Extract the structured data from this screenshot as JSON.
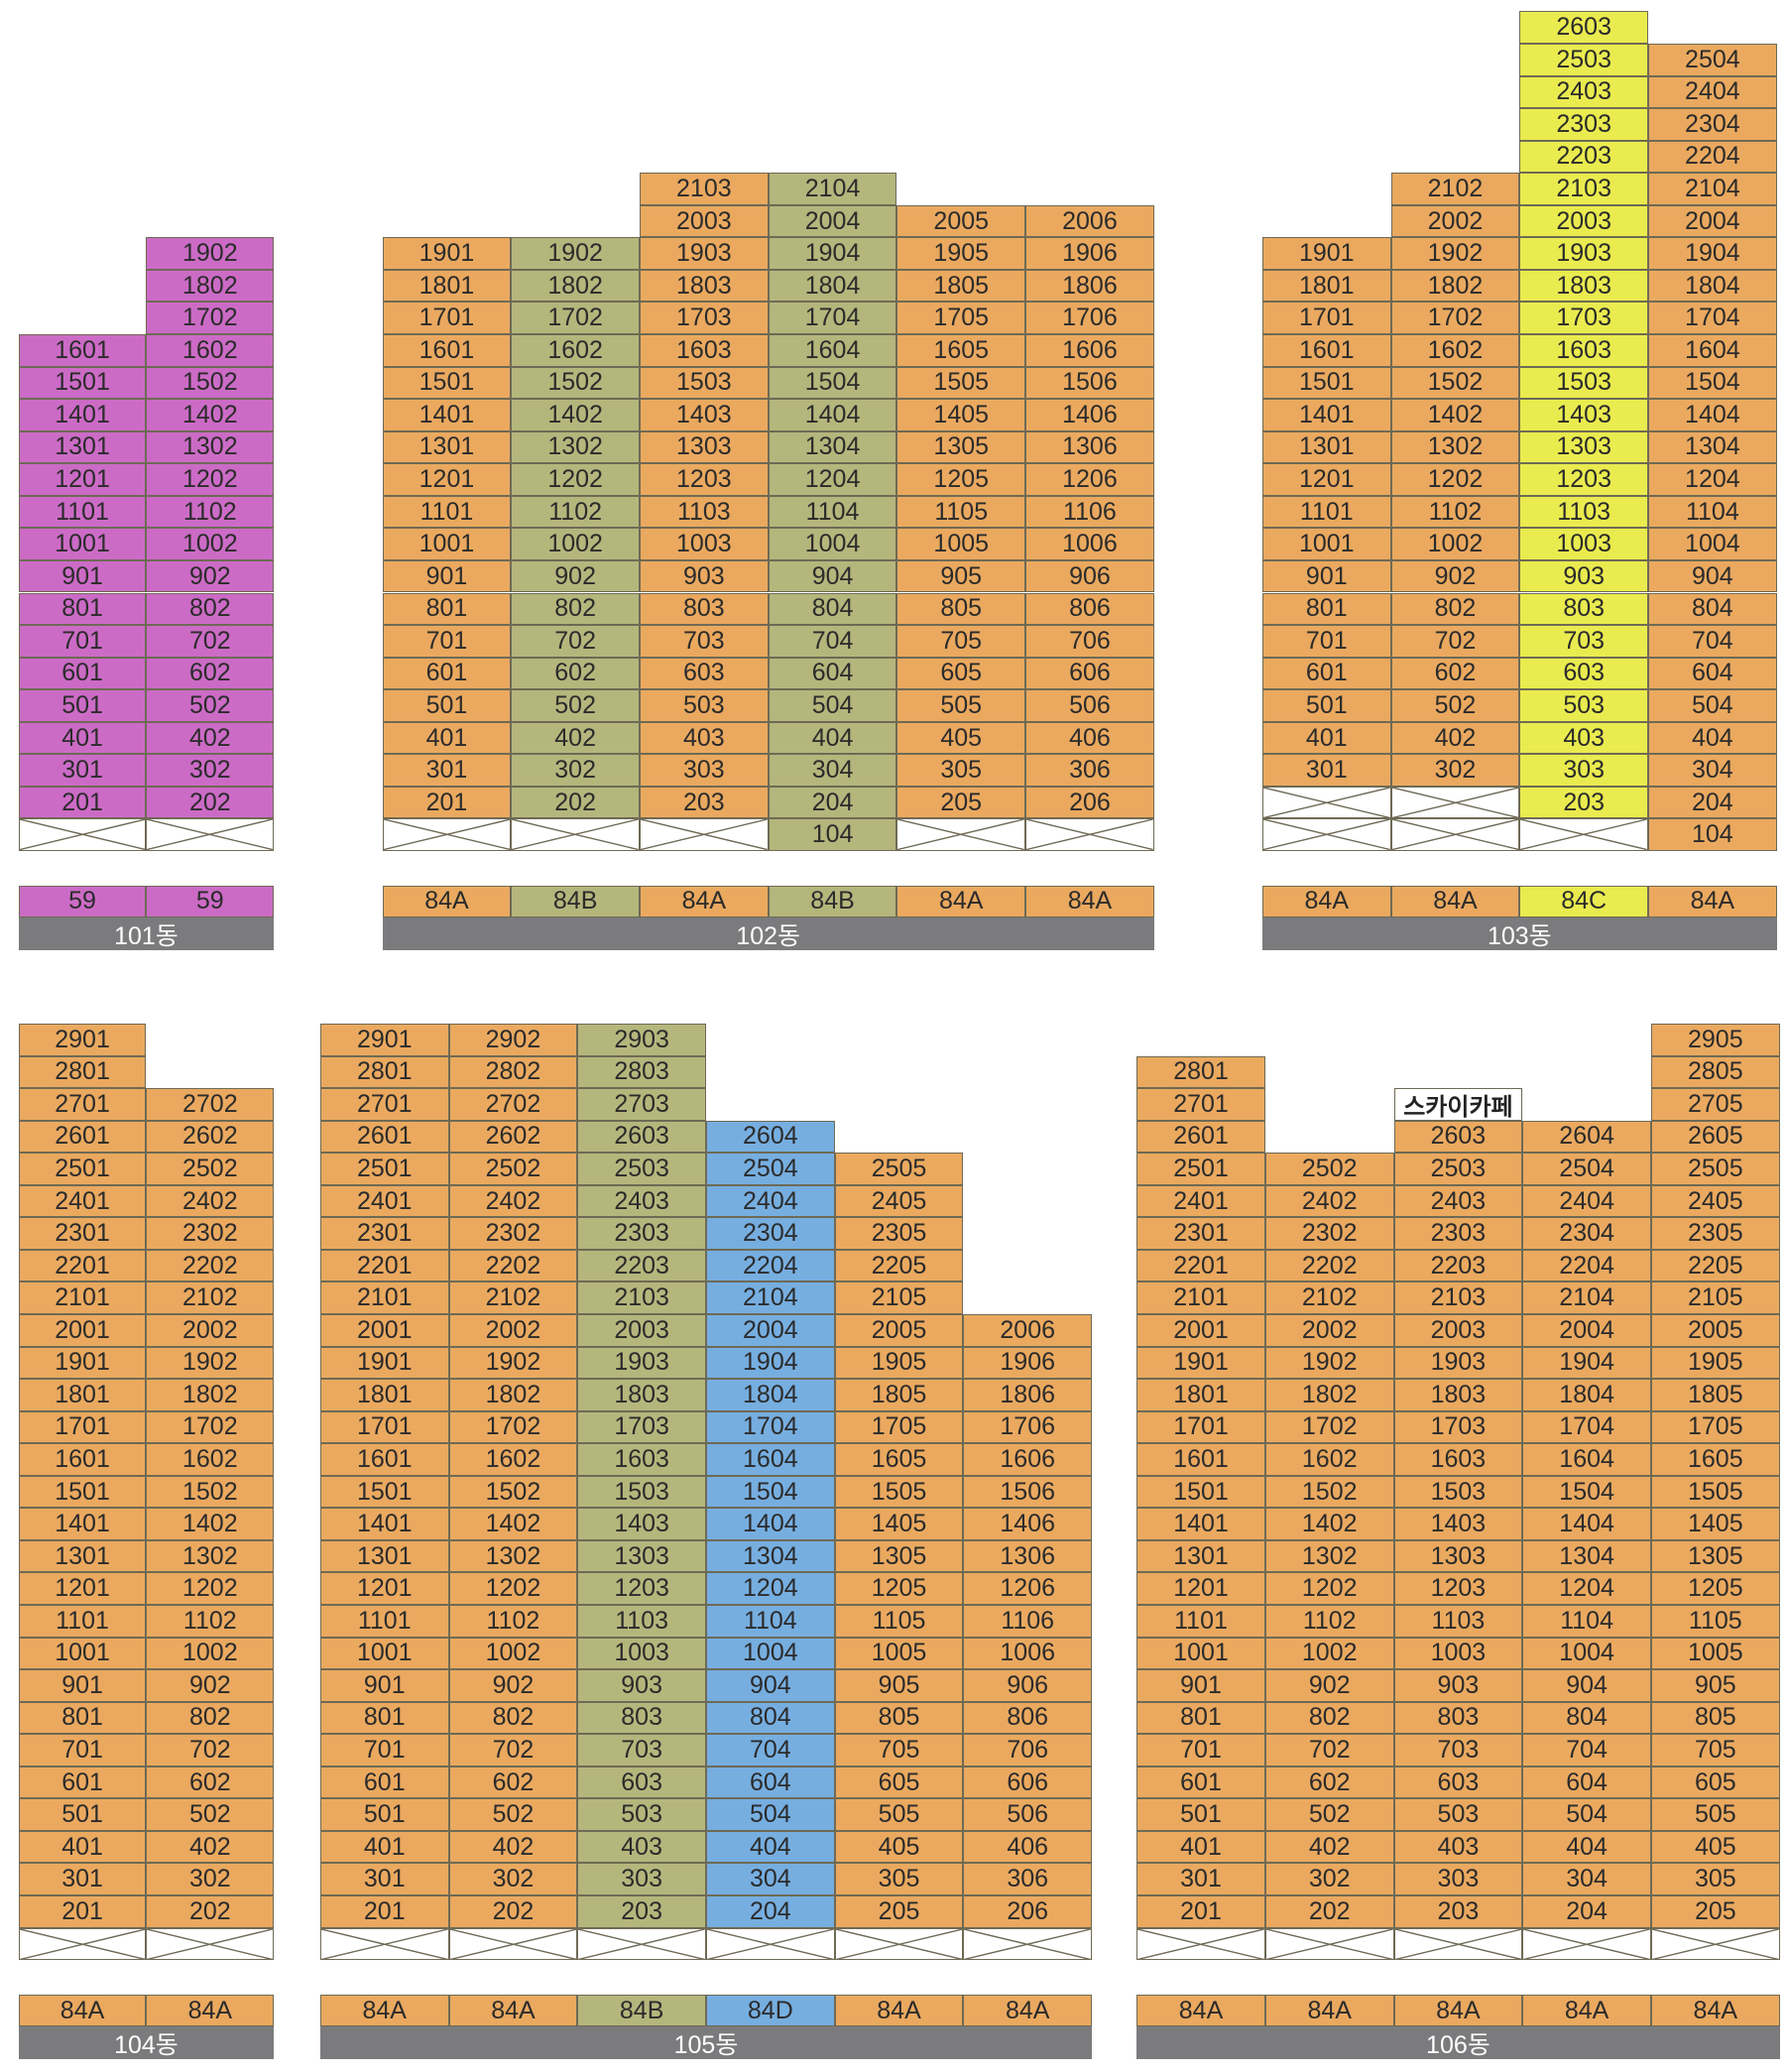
{
  "colors": {
    "59": "#cc6bc6",
    "84A": "#eaa95f",
    "84B": "#b5b67c",
    "84C": "#eaeb4f",
    "84D": "#76aee0",
    "grid": "#6e6a55",
    "label_bar": "#7b7b7d"
  },
  "buildings": [
    {
      "id": "b101",
      "label": "101동",
      "lines": [
        {
          "type": "59",
          "units": [
            "1601",
            "1501",
            "1401",
            "1301",
            "1201",
            "1101",
            "1001",
            "901",
            "801",
            "701",
            "601",
            "501",
            "401",
            "301",
            "201"
          ]
        },
        {
          "type": "59",
          "units": [
            "1902",
            "1802",
            "1702",
            "1602",
            "1502",
            "1402",
            "1302",
            "1202",
            "1102",
            "1002",
            "902",
            "802",
            "702",
            "602",
            "502",
            "402",
            "302",
            "202"
          ]
        }
      ]
    },
    {
      "id": "b102",
      "label": "102동",
      "lines": [
        {
          "type": "84A",
          "units": [
            "1901",
            "1801",
            "1701",
            "1601",
            "1501",
            "1401",
            "1301",
            "1201",
            "1101",
            "1001",
            "901",
            "801",
            "701",
            "601",
            "501",
            "401",
            "301",
            "201"
          ]
        },
        {
          "type": "84B",
          "units": [
            "1902",
            "1802",
            "1702",
            "1602",
            "1502",
            "1402",
            "1302",
            "1202",
            "1102",
            "1002",
            "902",
            "802",
            "702",
            "602",
            "502",
            "402",
            "302",
            "202"
          ]
        },
        {
          "type": "84A",
          "units": [
            "2103",
            "2003",
            "1903",
            "1803",
            "1703",
            "1603",
            "1503",
            "1403",
            "1303",
            "1203",
            "1103",
            "1003",
            "903",
            "803",
            "703",
            "603",
            "503",
            "403",
            "303",
            "203"
          ]
        },
        {
          "type": "84B",
          "units": [
            "2104",
            "2004",
            "1904",
            "1804",
            "1704",
            "1604",
            "1504",
            "1404",
            "1304",
            "1204",
            "1104",
            "1004",
            "904",
            "804",
            "704",
            "604",
            "504",
            "404",
            "304",
            "204",
            "104"
          ]
        },
        {
          "type": "84A",
          "units": [
            "2005",
            "1905",
            "1805",
            "1705",
            "1605",
            "1505",
            "1405",
            "1305",
            "1205",
            "1105",
            "1005",
            "905",
            "805",
            "705",
            "605",
            "505",
            "405",
            "305",
            "205"
          ]
        },
        {
          "type": "84A",
          "units": [
            "2006",
            "1906",
            "1806",
            "1706",
            "1606",
            "1506",
            "1406",
            "1306",
            "1206",
            "1106",
            "1006",
            "906",
            "806",
            "706",
            "606",
            "506",
            "406",
            "306",
            "206"
          ]
        }
      ]
    },
    {
      "id": "b103",
      "label": "103동",
      "lines": [
        {
          "type": "84A",
          "units": [
            "1901",
            "1801",
            "1701",
            "1601",
            "1501",
            "1401",
            "1301",
            "1201",
            "1101",
            "1001",
            "901",
            "801",
            "701",
            "601",
            "501",
            "401",
            "301"
          ]
        },
        {
          "type": "84A",
          "units": [
            "2102",
            "2002",
            "1902",
            "1802",
            "1702",
            "1602",
            "1502",
            "1402",
            "1302",
            "1202",
            "1102",
            "1002",
            "902",
            "802",
            "702",
            "602",
            "502",
            "402",
            "302"
          ]
        },
        {
          "type": "84C",
          "units": [
            "2603",
            "2503",
            "2403",
            "2303",
            "2203",
            "2103",
            "2003",
            "1903",
            "1803",
            "1703",
            "1603",
            "1503",
            "1403",
            "1303",
            "1203",
            "1103",
            "1003",
            "903",
            "803",
            "703",
            "603",
            "503",
            "403",
            "303",
            "203"
          ]
        },
        {
          "type": "84A",
          "units": [
            "2504",
            "2404",
            "2304",
            "2204",
            "2104",
            "2004",
            "1904",
            "1804",
            "1704",
            "1604",
            "1504",
            "1404",
            "1304",
            "1204",
            "1104",
            "1004",
            "904",
            "804",
            "704",
            "604",
            "504",
            "404",
            "304",
            "204",
            "104"
          ]
        }
      ]
    },
    {
      "id": "b104",
      "label": "104동",
      "lines": [
        {
          "type": "84A",
          "units": [
            "2901",
            "2801",
            "2701",
            "2601",
            "2501",
            "2401",
            "2301",
            "2201",
            "2101",
            "2001",
            "1901",
            "1801",
            "1701",
            "1601",
            "1501",
            "1401",
            "1301",
            "1201",
            "1101",
            "1001",
            "901",
            "801",
            "701",
            "601",
            "501",
            "401",
            "301",
            "201"
          ]
        },
        {
          "type": "84A",
          "units": [
            "2702",
            "2602",
            "2502",
            "2402",
            "2302",
            "2202",
            "2102",
            "2002",
            "1902",
            "1802",
            "1702",
            "1602",
            "1502",
            "1402",
            "1302",
            "1202",
            "1102",
            "1002",
            "902",
            "802",
            "702",
            "602",
            "502",
            "402",
            "302",
            "202"
          ]
        }
      ]
    },
    {
      "id": "b105",
      "label": "105동",
      "lines": [
        {
          "type": "84A",
          "units": [
            "2901",
            "2801",
            "2701",
            "2601",
            "2501",
            "2401",
            "2301",
            "2201",
            "2101",
            "2001",
            "1901",
            "1801",
            "1701",
            "1601",
            "1501",
            "1401",
            "1301",
            "1201",
            "1101",
            "1001",
            "901",
            "801",
            "701",
            "601",
            "501",
            "401",
            "301",
            "201"
          ]
        },
        {
          "type": "84A",
          "units": [
            "2902",
            "2802",
            "2702",
            "2602",
            "2502",
            "2402",
            "2302",
            "2202",
            "2102",
            "2002",
            "1902",
            "1802",
            "1702",
            "1602",
            "1502",
            "1402",
            "1302",
            "1202",
            "1102",
            "1002",
            "902",
            "802",
            "702",
            "602",
            "502",
            "402",
            "302",
            "202"
          ]
        },
        {
          "type": "84B",
          "units": [
            "2903",
            "2803",
            "2703",
            "2603",
            "2503",
            "2403",
            "2303",
            "2203",
            "2103",
            "2003",
            "1903",
            "1803",
            "1703",
            "1603",
            "1503",
            "1403",
            "1303",
            "1203",
            "1103",
            "1003",
            "903",
            "803",
            "703",
            "603",
            "503",
            "403",
            "303",
            "203"
          ]
        },
        {
          "type": "84D",
          "units": [
            "2604",
            "2504",
            "2404",
            "2304",
            "2204",
            "2104",
            "2004",
            "1904",
            "1804",
            "1704",
            "1604",
            "1504",
            "1404",
            "1304",
            "1204",
            "1104",
            "1004",
            "904",
            "804",
            "704",
            "604",
            "504",
            "404",
            "304",
            "204"
          ]
        },
        {
          "type": "84A",
          "units": [
            "2505",
            "2405",
            "2305",
            "2205",
            "2105",
            "2005",
            "1905",
            "1805",
            "1705",
            "1605",
            "1505",
            "1405",
            "1305",
            "1205",
            "1105",
            "1005",
            "905",
            "805",
            "705",
            "605",
            "505",
            "405",
            "305",
            "205"
          ]
        },
        {
          "type": "84A",
          "units": [
            "2006",
            "1906",
            "1806",
            "1706",
            "1606",
            "1506",
            "1406",
            "1306",
            "1206",
            "1106",
            "1006",
            "906",
            "806",
            "706",
            "606",
            "506",
            "406",
            "306",
            "206"
          ]
        }
      ]
    },
    {
      "id": "b106",
      "label": "106동",
      "lines": [
        {
          "type": "84A",
          "units": [
            "2801",
            "2701",
            "2601",
            "2501",
            "2401",
            "2301",
            "2201",
            "2101",
            "2001",
            "1901",
            "1801",
            "1701",
            "1601",
            "1501",
            "1401",
            "1301",
            "1201",
            "1101",
            "1001",
            "901",
            "801",
            "701",
            "601",
            "501",
            "401",
            "301",
            "201"
          ]
        },
        {
          "type": "84A",
          "units": [
            "2502",
            "2402",
            "2302",
            "2202",
            "2102",
            "2002",
            "1902",
            "1802",
            "1702",
            "1602",
            "1502",
            "1402",
            "1302",
            "1202",
            "1102",
            "1002",
            "902",
            "802",
            "702",
            "602",
            "502",
            "402",
            "302",
            "202"
          ]
        },
        {
          "type": "84A",
          "units": [
            "2603",
            "2503",
            "2403",
            "2303",
            "2203",
            "2103",
            "2003",
            "1903",
            "1803",
            "1703",
            "1603",
            "1503",
            "1403",
            "1303",
            "1203",
            "1103",
            "1003",
            "903",
            "803",
            "703",
            "603",
            "503",
            "403",
            "303",
            "203"
          ]
        },
        {
          "type": "84A",
          "units": [
            "2604",
            "2504",
            "2404",
            "2304",
            "2204",
            "2104",
            "2004",
            "1904",
            "1804",
            "1704",
            "1604",
            "1504",
            "1404",
            "1304",
            "1204",
            "1104",
            "1004",
            "904",
            "804",
            "704",
            "604",
            "504",
            "404",
            "304",
            "204"
          ]
        },
        {
          "type": "84A",
          "units": [
            "2905",
            "2805",
            "2705",
            "2605",
            "2505",
            "2405",
            "2305",
            "2205",
            "2105",
            "2005",
            "1905",
            "1805",
            "1705",
            "1605",
            "1505",
            "1405",
            "1305",
            "1205",
            "1105",
            "1005",
            "905",
            "805",
            "705",
            "605",
            "505",
            "405",
            "305",
            "205"
          ]
        }
      ],
      "note": "스카이카페"
    }
  ]
}
